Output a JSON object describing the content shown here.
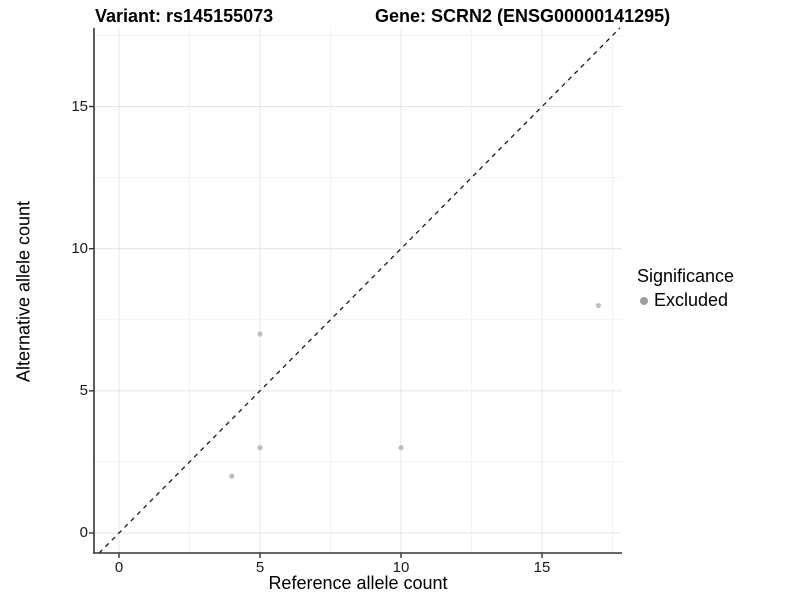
{
  "titles": {
    "left": "Variant: rs145155073",
    "right": "Gene: SCRN2 (ENSG00000141295)"
  },
  "chart_data": {
    "type": "scatter",
    "title": "Variant: rs145155073   |   Gene: SCRN2 (ENSG00000141295)",
    "xlabel": "Reference allele count",
    "ylabel": "Alternative allele count",
    "x_ticks": [
      0,
      5,
      10,
      15
    ],
    "y_ticks": [
      0,
      5,
      10,
      15
    ],
    "x_minor_ticks": [
      2.5,
      7.5,
      12.5,
      17.5
    ],
    "y_minor_ticks": [
      2.5,
      7.5,
      12.5,
      17.5
    ],
    "xlim": [
      -0.9,
      17.85
    ],
    "ylim": [
      -0.7,
      17.8
    ],
    "grid": true,
    "series": [
      {
        "name": "Excluded",
        "points": [
          {
            "x": 4,
            "y": 2
          },
          {
            "x": 5,
            "y": 3
          },
          {
            "x": 5,
            "y": 7
          },
          {
            "x": 10,
            "y": 3
          },
          {
            "x": 17,
            "y": 8
          }
        ]
      }
    ],
    "reference_line": {
      "equation": "y = x",
      "style": "dashed",
      "color": "#1a1a1a"
    },
    "legend": {
      "position": "right",
      "title": "Significance",
      "items": [
        {
          "label": "Excluded",
          "color": "#9c9c9c"
        }
      ]
    },
    "colors": {
      "point": "#bfbfbf",
      "grid_major": "#e4e4e4",
      "grid_minor": "#f2f2f2",
      "axis": "#333333",
      "dashed_line": "#1a1a1a"
    }
  }
}
